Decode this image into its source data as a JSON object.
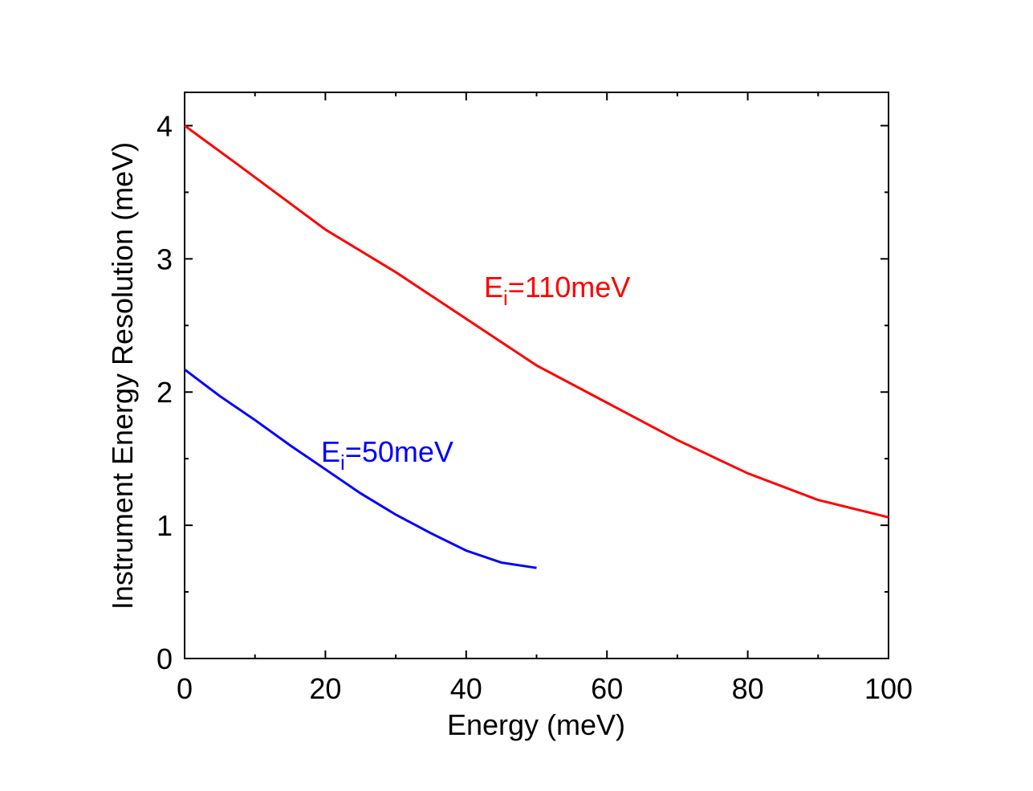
{
  "chart_data": {
    "type": "line",
    "xlabel": "Energy (meV)",
    "ylabel": "Instrument Energy Resolution (meV)",
    "xlim": [
      0,
      100
    ],
    "ylim": [
      0,
      4.25
    ],
    "xticks": [
      0,
      20,
      40,
      60,
      80,
      100
    ],
    "xminorticks": [
      10,
      30,
      50,
      70,
      90
    ],
    "yticks": [
      0,
      1,
      2,
      3,
      4
    ],
    "yminorticks": [
      0.5,
      1.5,
      2.5,
      3.5
    ],
    "series": [
      {
        "label": [
          "E",
          "i",
          "=110meV"
        ],
        "color": "#ff0000",
        "x": [
          0,
          7.5,
          20,
          30,
          40,
          50,
          60,
          70,
          80,
          90,
          100
        ],
        "values": [
          4.0,
          3.71,
          3.22,
          2.9,
          2.55,
          2.2,
          1.92,
          1.64,
          1.39,
          1.19,
          1.06
        ]
      },
      {
        "label": [
          "E",
          "i",
          "=50meV"
        ],
        "color": "#0000ff",
        "x": [
          0,
          5,
          10,
          15,
          20,
          25,
          30,
          35,
          40,
          45,
          50
        ],
        "values": [
          2.17,
          1.97,
          1.79,
          1.6,
          1.42,
          1.24,
          1.08,
          0.94,
          0.81,
          0.72,
          0.68
        ]
      }
    ]
  }
}
